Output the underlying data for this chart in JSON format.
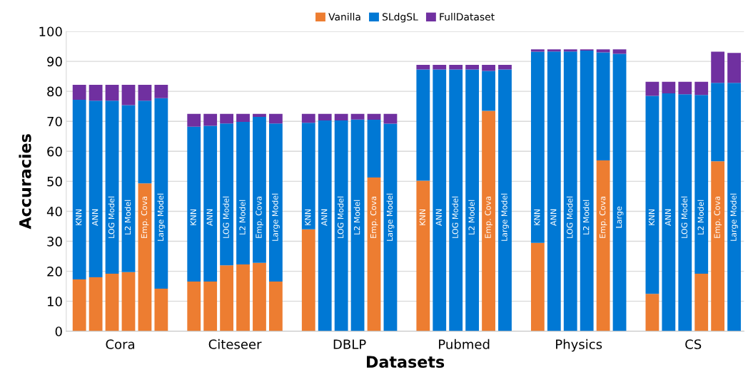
{
  "chart_data": {
    "type": "bar",
    "stacked": true,
    "xlabel": "Datasets",
    "ylabel": "Accuracies",
    "categories": [
      "KNN",
      "ANN",
      "LOG Model",
      "L2 Model",
      "Emp. Cova",
      "Large Model",
      "KNN",
      "ANN",
      "LOG Model",
      "L2 Model",
      "Emp. Cova",
      "Large Model",
      "KNN",
      "ANN",
      "LOG Model",
      "L2 Model",
      "Emp. Cova",
      "Large Model",
      "KNN",
      "ANN",
      "LOG Model",
      "L2 Model",
      "Emp. Cova",
      "Large Model",
      "KNN",
      "ANN",
      "LOG Model",
      "L2 Model",
      "Emp. Cova",
      "Large",
      "KNN",
      "ANN",
      "LOG Model",
      "L2 Model",
      "Emp. Cova",
      "Large Model"
    ],
    "annotations": [
      "Cora",
      "Citeseer",
      "DBLP",
      "Pubmed",
      "Physics",
      "CS"
    ],
    "series": [
      {
        "name": "Vanilla",
        "color": "#ed7d31",
        "values": [
          17.3,
          18.0,
          19.2,
          19.7,
          49.3,
          14.2,
          16.6,
          16.6,
          22.0,
          22.3,
          22.8,
          16.6,
          34.0,
          0,
          0,
          0,
          51.3,
          0,
          50.2,
          0,
          0,
          0,
          73.5,
          0,
          29.5,
          0,
          0,
          0,
          57.0,
          0,
          12.5,
          0,
          0,
          19.2,
          56.7,
          0
        ]
      },
      {
        "name": "SLdgSL",
        "color": "#0078d4",
        "values": [
          59.9,
          58.9,
          57.7,
          55.7,
          27.6,
          63.5,
          51.6,
          51.9,
          47.3,
          47.5,
          48.7,
          52.7,
          35.5,
          70.3,
          70.3,
          70.6,
          19.2,
          69.2,
          37.1,
          87.3,
          87.3,
          87.3,
          13.3,
          87.3,
          63.7,
          93.3,
          93.3,
          93.6,
          36.0,
          92.5,
          66.0,
          79.3,
          79.0,
          59.6,
          26.1,
          82.8
        ]
      },
      {
        "name": "FullDataset",
        "color": "#7030a0",
        "values": [
          5.0,
          5.3,
          5.3,
          6.8,
          5.3,
          4.5,
          4.3,
          4.0,
          3.2,
          2.7,
          1.0,
          3.2,
          3.0,
          2.2,
          2.2,
          1.9,
          2.0,
          3.3,
          1.5,
          1.5,
          1.5,
          1.5,
          2.0,
          1.5,
          0.8,
          0.7,
          0.7,
          0.4,
          1.0,
          1.5,
          4.7,
          3.9,
          4.2,
          4.4,
          10.4,
          10.0
        ]
      }
    ],
    "ylim": [
      0,
      100
    ],
    "yticks": [
      0,
      10,
      20,
      30,
      40,
      50,
      60,
      70,
      80,
      90,
      100
    ],
    "grid": "y",
    "legend": "top"
  }
}
